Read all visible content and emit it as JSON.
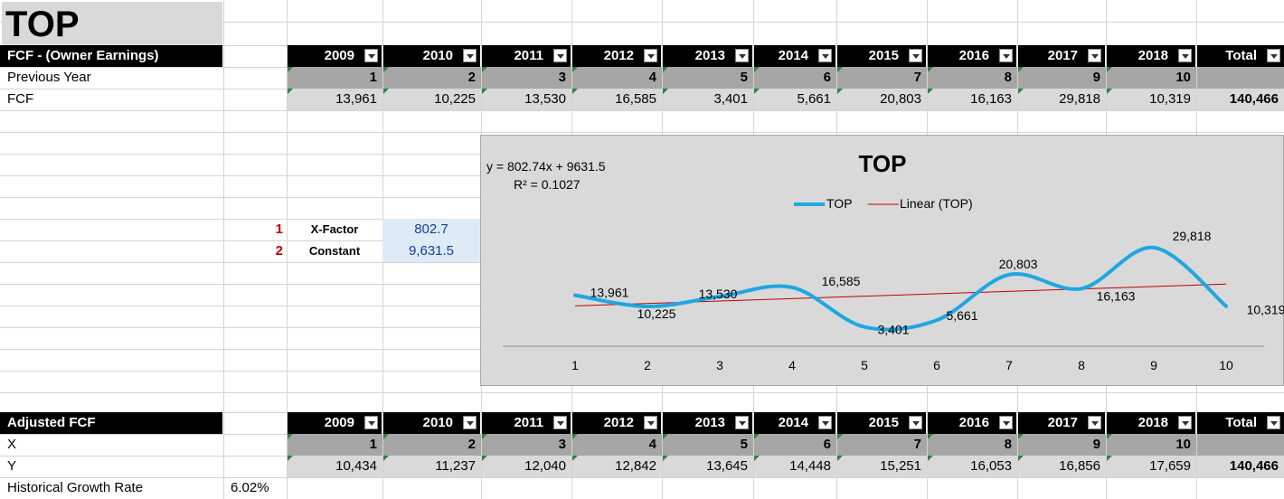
{
  "title": "TOP",
  "fcf_table": {
    "header_label": "FCF - (Owner Earnings)",
    "years": [
      "2009",
      "2010",
      "2011",
      "2012",
      "2013",
      "2014",
      "2015",
      "2016",
      "2017",
      "2018"
    ],
    "total_label": "Total",
    "row1_label": "Previous Year",
    "row1_values": [
      "1",
      "2",
      "3",
      "4",
      "5",
      "6",
      "7",
      "8",
      "9",
      "10"
    ],
    "row2_label": "FCF",
    "row2_values": [
      "13,961",
      "10,225",
      "13,530",
      "16,585",
      "3,401",
      "5,661",
      "20,803",
      "16,163",
      "29,818",
      "10,319"
    ],
    "row2_total": "140,466"
  },
  "params": {
    "items": [
      {
        "num": "1",
        "label": "X-Factor",
        "value": "802.7"
      },
      {
        "num": "2",
        "label": "Constant",
        "value": "9,631.5"
      }
    ]
  },
  "adj_table": {
    "header_label": "Adjusted FCF",
    "years": [
      "2009",
      "2010",
      "2011",
      "2012",
      "2013",
      "2014",
      "2015",
      "2016",
      "2017",
      "2018"
    ],
    "total_label": "Total",
    "row1_label": "X",
    "row1_values": [
      "1",
      "2",
      "3",
      "4",
      "5",
      "6",
      "7",
      "8",
      "9",
      "10"
    ],
    "row2_label": "Y",
    "row2_values": [
      "10,434",
      "11,237",
      "12,040",
      "12,842",
      "13,645",
      "14,448",
      "15,251",
      "16,053",
      "16,856",
      "17,659"
    ],
    "row2_total": "140,466",
    "growth_label": "Historical Growth Rate",
    "growth_value": "6.02%"
  },
  "chart_data": {
    "type": "line",
    "title": "TOP",
    "equation": "y = 802.74x + 9631.5",
    "r_squared": "R² = 0.1027",
    "x": [
      1,
      2,
      3,
      4,
      5,
      6,
      7,
      8,
      9,
      10
    ],
    "series": [
      {
        "name": "TOP",
        "values": [
          13961,
          10225,
          13530,
          16585,
          3401,
          5661,
          20803,
          16163,
          29818,
          10319
        ],
        "color": "#1ea7e1"
      }
    ],
    "trend": {
      "name": "Linear (TOP)",
      "slope": 802.74,
      "intercept": 9631.5,
      "color": "#c00000"
    },
    "data_labels": [
      "13,961",
      "10,225",
      "13,530",
      "16,585",
      "3,401",
      "5,661",
      "20,803",
      "16,163",
      "29,818",
      "10,319"
    ],
    "legend": "top-center"
  }
}
